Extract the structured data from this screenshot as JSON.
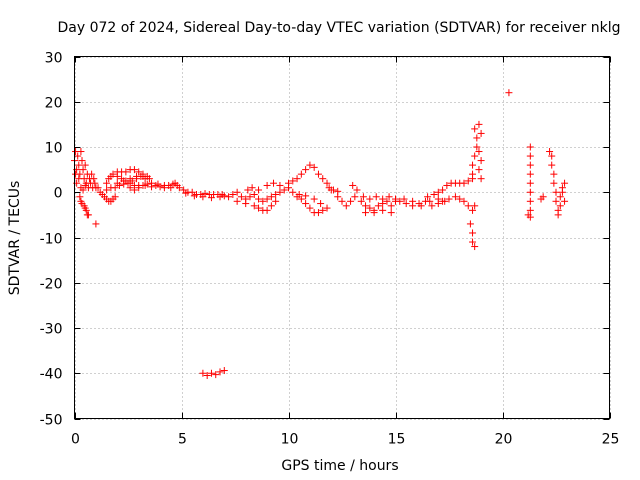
{
  "chart_data": {
    "type": "scatter",
    "title": "Day 072 of 2024, Sidereal Day-to-day VTEC variation (SDTVAR) for receiver nklg",
    "xlabel": "GPS time / hours",
    "ylabel": "SDTVAR / TECUs",
    "xlim": [
      0,
      25
    ],
    "ylim": [
      -50,
      30
    ],
    "xticks": [
      0,
      5,
      10,
      15,
      20,
      25
    ],
    "yticks": [
      30,
      20,
      10,
      0,
      -10,
      -20,
      -30,
      -40,
      -50
    ],
    "x_tick_labels": [
      "0",
      "5",
      "10",
      "15",
      "20",
      "25"
    ],
    "y_tick_labels": [
      "30",
      "20",
      "10",
      "0",
      "-10",
      "-20",
      "-30",
      "-40",
      "-50"
    ],
    "grid": true,
    "marker": "+",
    "color": "#ff0000",
    "series": [
      {
        "name": "SDTVAR",
        "points": [
          [
            0.0,
            7
          ],
          [
            0.05,
            9
          ],
          [
            0.1,
            5
          ],
          [
            0.15,
            8
          ],
          [
            0.2,
            6
          ],
          [
            0.25,
            4
          ],
          [
            0.3,
            9
          ],
          [
            0.35,
            7
          ],
          [
            0.4,
            5
          ],
          [
            0.45,
            3
          ],
          [
            0.5,
            6
          ],
          [
            0.55,
            2
          ],
          [
            0.6,
            4
          ],
          [
            0.65,
            1
          ],
          [
            0.7,
            3
          ],
          [
            0.75,
            2
          ],
          [
            0.8,
            4
          ],
          [
            0.85,
            1
          ],
          [
            0.9,
            3
          ],
          [
            0.95,
            2
          ],
          [
            1.0,
            1
          ],
          [
            0.05,
            4
          ],
          [
            0.1,
            2
          ],
          [
            0.2,
            3
          ],
          [
            0.3,
            1
          ],
          [
            0.4,
            0.5
          ],
          [
            0.5,
            1.5
          ],
          [
            0.25,
            -1
          ],
          [
            0.3,
            -2
          ],
          [
            0.35,
            -2.5
          ],
          [
            0.45,
            -3
          ],
          [
            0.5,
            -3.5
          ],
          [
            0.55,
            -4
          ],
          [
            0.6,
            -5
          ],
          [
            0.65,
            -5
          ],
          [
            1.0,
            -7
          ],
          [
            1.1,
            1
          ],
          [
            1.2,
            0
          ],
          [
            1.3,
            -0.5
          ],
          [
            1.4,
            -1
          ],
          [
            1.5,
            -1.5
          ],
          [
            1.6,
            -2
          ],
          [
            1.7,
            -2
          ],
          [
            1.8,
            -1.5
          ],
          [
            1.9,
            -1
          ],
          [
            1.5,
            2
          ],
          [
            1.6,
            3
          ],
          [
            1.7,
            3.5
          ],
          [
            1.8,
            4
          ],
          [
            2.0,
            3.5
          ],
          [
            2.2,
            3
          ],
          [
            2.4,
            2.5
          ],
          [
            2.6,
            2
          ],
          [
            2.8,
            1.5
          ],
          [
            2.0,
            4.5
          ],
          [
            2.2,
            4.5
          ],
          [
            2.4,
            4.5
          ],
          [
            2.6,
            5
          ],
          [
            2.8,
            5
          ],
          [
            3.0,
            4.5
          ],
          [
            3.2,
            4
          ],
          [
            3.4,
            3.5
          ],
          [
            1.9,
            1
          ],
          [
            2.1,
            1.5
          ],
          [
            2.3,
            1.8
          ],
          [
            2.5,
            2
          ],
          [
            2.7,
            2.5
          ],
          [
            2.9,
            3
          ],
          [
            3.1,
            3.5
          ],
          [
            3.3,
            3
          ],
          [
            1.5,
            0.5
          ],
          [
            1.7,
            1
          ],
          [
            2.0,
            2
          ],
          [
            2.3,
            2.5
          ],
          [
            2.6,
            3
          ],
          [
            2.9,
            3.5
          ],
          [
            3.2,
            3.5
          ],
          [
            3.5,
            3
          ],
          [
            2.6,
            1
          ],
          [
            2.8,
            0.5
          ],
          [
            3.0,
            1
          ],
          [
            3.2,
            1.5
          ],
          [
            3.4,
            1.8
          ],
          [
            3.6,
            2
          ],
          [
            3.8,
            1.5
          ],
          [
            4.0,
            1.2
          ],
          [
            4.2,
            1.5
          ],
          [
            4.4,
            1.5
          ],
          [
            4.6,
            1.8
          ],
          [
            4.8,
            1.5
          ],
          [
            3.0,
            1.5
          ],
          [
            3.3,
            1.5
          ],
          [
            3.6,
            1.2
          ],
          [
            3.9,
            1.8
          ],
          [
            4.2,
            1.0
          ],
          [
            4.5,
            1.0
          ],
          [
            4.7,
            2.0
          ],
          [
            4.9,
            1
          ],
          [
            5.1,
            0.5
          ],
          [
            5.3,
            0
          ],
          [
            5.5,
            0
          ],
          [
            5.7,
            -0.5
          ],
          [
            5.9,
            -0.5
          ],
          [
            6.1,
            -0.3
          ],
          [
            6.3,
            -0.5
          ],
          [
            6.5,
            -0.5
          ],
          [
            6.7,
            -0.5
          ],
          [
            6.9,
            -0.5
          ],
          [
            5.2,
            -0.2
          ],
          [
            5.6,
            -0.8
          ],
          [
            6.0,
            -1.0
          ],
          [
            6.4,
            -1.2
          ],
          [
            6.8,
            -1.0
          ],
          [
            7.0,
            -0.8
          ],
          [
            7.2,
            -1
          ],
          [
            7.4,
            -0.5
          ],
          [
            7.6,
            0
          ],
          [
            7.8,
            -1
          ],
          [
            8.0,
            -1.5
          ],
          [
            8.2,
            -1
          ],
          [
            8.4,
            -0.5
          ],
          [
            8.6,
            -1.5
          ],
          [
            8.8,
            -2
          ],
          [
            9.0,
            -1.5
          ],
          [
            9.2,
            -1
          ],
          [
            9.4,
            -0.5
          ],
          [
            9.6,
            0
          ],
          [
            9.8,
            0.5
          ],
          [
            10.0,
            1
          ],
          [
            7.6,
            -2
          ],
          [
            8.0,
            -2.5
          ],
          [
            8.4,
            -3
          ],
          [
            8.6,
            -3.5
          ],
          [
            8.8,
            -4
          ],
          [
            9.0,
            -4
          ],
          [
            9.2,
            -3
          ],
          [
            9.4,
            -2
          ],
          [
            8.1,
            0.5
          ],
          [
            8.3,
            1
          ],
          [
            8.6,
            0.5
          ],
          [
            9.0,
            1.5
          ],
          [
            9.3,
            2
          ],
          [
            9.6,
            1.5
          ],
          [
            10.0,
            2
          ],
          [
            10.2,
            2.5
          ],
          [
            10.4,
            3
          ],
          [
            10.6,
            4
          ],
          [
            10.8,
            5
          ],
          [
            11.0,
            6
          ],
          [
            11.2,
            5.5
          ],
          [
            11.4,
            4
          ],
          [
            11.6,
            3
          ],
          [
            11.8,
            2
          ],
          [
            10.2,
            0
          ],
          [
            10.4,
            -1
          ],
          [
            10.6,
            -1.5
          ],
          [
            10.8,
            -2.5
          ],
          [
            11.0,
            -3.5
          ],
          [
            11.2,
            -4.5
          ],
          [
            11.4,
            -4.5
          ],
          [
            11.6,
            -4
          ],
          [
            10.5,
            -0.5
          ],
          [
            10.8,
            -0.8
          ],
          [
            11.2,
            -1.5
          ],
          [
            11.5,
            -2.5
          ],
          [
            11.8,
            -3.5
          ],
          [
            11.9,
            1
          ],
          [
            12.1,
            0.5
          ],
          [
            12.3,
            0.2
          ],
          [
            6.0,
            -40
          ],
          [
            6.2,
            -40.5
          ],
          [
            6.4,
            -40
          ],
          [
            6.6,
            -40.3
          ],
          [
            6.8,
            -39.7
          ],
          [
            7.0,
            -39.4
          ],
          [
            12.0,
            0.5
          ],
          [
            12.3,
            -1
          ],
          [
            12.5,
            -2
          ],
          [
            12.7,
            -3
          ],
          [
            12.9,
            -2
          ],
          [
            13.0,
            1.5
          ],
          [
            13.2,
            0.5
          ],
          [
            13.1,
            -1
          ],
          [
            13.4,
            -2
          ],
          [
            13.6,
            -3
          ],
          [
            13.8,
            -3.5
          ],
          [
            14.0,
            -4
          ],
          [
            14.2,
            -3
          ],
          [
            14.4,
            -2.5
          ],
          [
            14.6,
            -2
          ],
          [
            14.8,
            -3
          ],
          [
            15.0,
            -2
          ],
          [
            13.5,
            -1
          ],
          [
            13.8,
            -1.5
          ],
          [
            14.1,
            -1
          ],
          [
            14.4,
            -1.5
          ],
          [
            14.7,
            -1
          ],
          [
            15.0,
            -1.5
          ],
          [
            13.6,
            -4.5
          ],
          [
            14.0,
            -4.5
          ],
          [
            14.4,
            -4
          ],
          [
            14.8,
            -4.5
          ],
          [
            15.2,
            -2
          ],
          [
            15.5,
            -2.5
          ],
          [
            15.8,
            -2
          ],
          [
            16.1,
            -2.5
          ],
          [
            16.4,
            -2
          ],
          [
            16.7,
            -3
          ],
          [
            17.0,
            -2.5
          ],
          [
            17.3,
            -2
          ],
          [
            15.4,
            -1.5
          ],
          [
            15.8,
            -3
          ],
          [
            16.2,
            -3
          ],
          [
            16.6,
            -2
          ],
          [
            17.0,
            -1.5
          ],
          [
            16.5,
            -1
          ],
          [
            16.8,
            -0.5
          ],
          [
            17.0,
            0
          ],
          [
            17.2,
            0.5
          ],
          [
            17.4,
            1.5
          ],
          [
            17.6,
            2
          ],
          [
            17.8,
            2
          ],
          [
            18.0,
            2
          ],
          [
            18.2,
            2
          ],
          [
            18.4,
            2.5
          ],
          [
            18.6,
            3
          ],
          [
            17.2,
            -2
          ],
          [
            17.5,
            -1.5
          ],
          [
            17.8,
            -1
          ],
          [
            18.0,
            -1.5
          ],
          [
            18.2,
            -2
          ],
          [
            18.4,
            -3
          ],
          [
            18.6,
            -4
          ],
          [
            18.7,
            -3
          ],
          [
            18.5,
            -7
          ],
          [
            18.6,
            -9
          ],
          [
            18.6,
            -11
          ],
          [
            18.7,
            -12
          ],
          [
            18.7,
            14
          ],
          [
            18.8,
            12
          ],
          [
            18.8,
            10
          ],
          [
            18.7,
            8
          ],
          [
            18.6,
            6
          ],
          [
            18.6,
            4
          ],
          [
            18.9,
            15
          ],
          [
            19.0,
            13
          ],
          [
            18.9,
            9
          ],
          [
            19.0,
            7
          ],
          [
            18.9,
            5
          ],
          [
            19.0,
            3
          ],
          [
            20.3,
            22
          ],
          [
            21.2,
            -5
          ],
          [
            21.3,
            -4
          ],
          [
            21.3,
            -5.5
          ],
          [
            21.3,
            10
          ],
          [
            21.3,
            8
          ],
          [
            21.3,
            6
          ],
          [
            21.3,
            4
          ],
          [
            21.3,
            2
          ],
          [
            21.3,
            0
          ],
          [
            21.3,
            -2
          ],
          [
            21.8,
            -1.5
          ],
          [
            21.9,
            -1
          ],
          [
            22.2,
            9
          ],
          [
            22.3,
            8
          ],
          [
            22.3,
            6
          ],
          [
            22.4,
            4
          ],
          [
            22.4,
            2
          ],
          [
            22.5,
            0
          ],
          [
            22.5,
            -2
          ],
          [
            22.6,
            -4
          ],
          [
            22.6,
            -5
          ],
          [
            22.7,
            -3
          ],
          [
            22.7,
            -1
          ],
          [
            22.8,
            0
          ],
          [
            22.8,
            1
          ],
          [
            22.9,
            2
          ],
          [
            22.9,
            -2
          ]
        ]
      }
    ]
  }
}
